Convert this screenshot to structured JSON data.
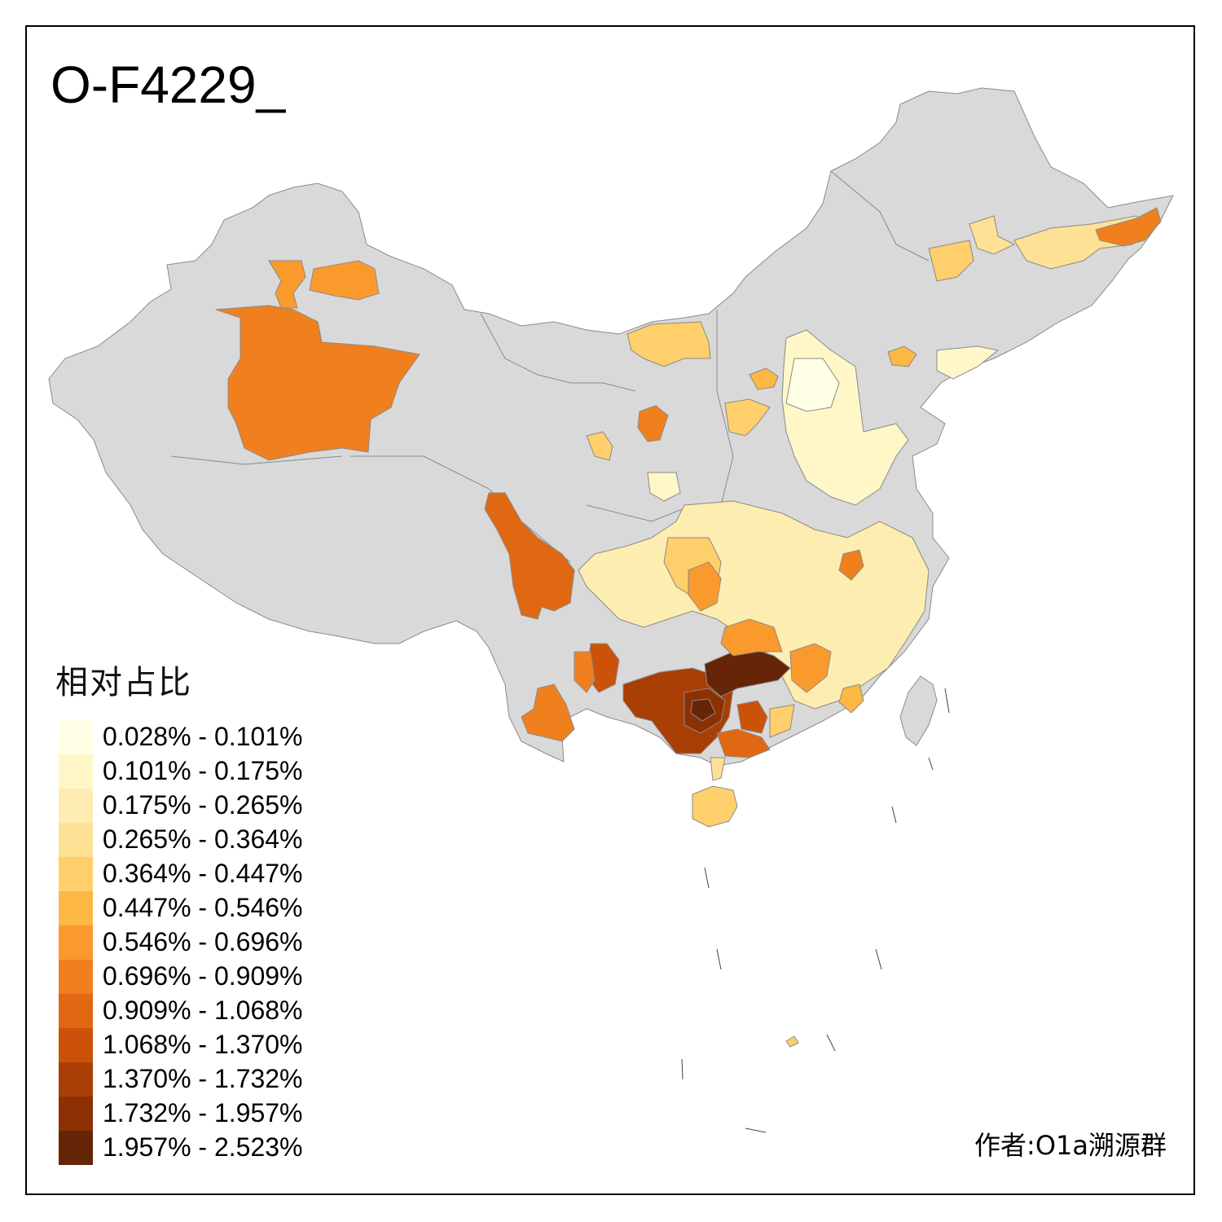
{
  "title": "O-F4229_",
  "legend": {
    "title": "相对占比",
    "items": [
      {
        "label": "0.028% - 0.101%",
        "color": "#FFFFE5"
      },
      {
        "label": "0.101% - 0.175%",
        "color": "#FFF7C8"
      },
      {
        "label": "0.175% - 0.265%",
        "color": "#FEEDB0"
      },
      {
        "label": "0.265% - 0.364%",
        "color": "#FEE194"
      },
      {
        "label": "0.364% - 0.447%",
        "color": "#FECF6A"
      },
      {
        "label": "0.447% - 0.546%",
        "color": "#FDB743"
      },
      {
        "label": "0.546% - 0.696%",
        "color": "#FB9A2C"
      },
      {
        "label": "0.696% - 0.909%",
        "color": "#F0801E"
      },
      {
        "label": "0.909% - 1.068%",
        "color": "#E06812"
      },
      {
        "label": "1.068% - 1.370%",
        "color": "#CC520A"
      },
      {
        "label": "1.370% - 1.732%",
        "color": "#A93F05"
      },
      {
        "label": "1.732% - 1.957%",
        "color": "#8C3104"
      },
      {
        "label": "1.957% - 2.523%",
        "color": "#662506"
      }
    ]
  },
  "author": "作者:O1a溯源群",
  "colors": {
    "no_data": "#D9D9D9",
    "border": "#7F7F7F"
  }
}
